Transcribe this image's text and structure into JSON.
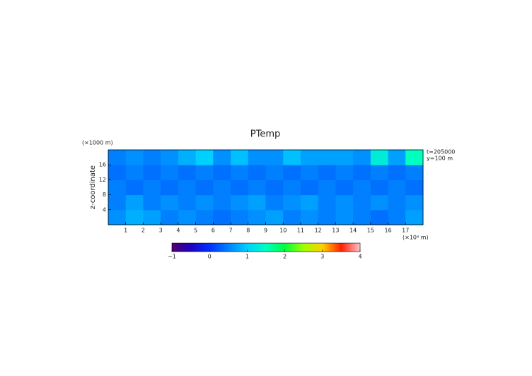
{
  "chart_data": {
    "type": "heatmap",
    "title": "PTemp",
    "ylabel": "z-coordinate",
    "ylabel_unit": "(×1000 m)",
    "xlabel_unit": "(×10⁴ m)",
    "annotations": [
      "t=205000",
      "y=100 m"
    ],
    "xlim": [
      0,
      18
    ],
    "ylim": [
      0,
      20
    ],
    "xticks": [
      1,
      2,
      3,
      4,
      5,
      6,
      7,
      8,
      9,
      10,
      11,
      12,
      13,
      14,
      15,
      16,
      17
    ],
    "yticks": [
      4,
      8,
      12,
      16
    ],
    "clim": [
      -1,
      4
    ],
    "cticks": [
      {
        "value": -1,
        "label": "−1"
      },
      0,
      1,
      2,
      3,
      4
    ],
    "colormap": [
      "#500070",
      "#2000c0",
      "#0030ff",
      "#0080ff",
      "#00d0ff",
      "#00ffc0",
      "#00ff40",
      "#a0ff00",
      "#ffd000",
      "#ff2000",
      "#ffc0d0"
    ],
    "z": [
      [
        0.6,
        0.8,
        0.7,
        0.5,
        0.6,
        0.5,
        0.4,
        0.5,
        0.6,
        0.7,
        0.5,
        0.6,
        0.5,
        0.6,
        0.5,
        0.4,
        0.5,
        0.7
      ],
      [
        0.5,
        0.7,
        0.5,
        0.6,
        0.5,
        0.6,
        0.5,
        0.6,
        0.7,
        0.5,
        0.6,
        0.7,
        0.5,
        0.6,
        0.5,
        0.6,
        0.5,
        0.6
      ],
      [
        0.5,
        0.4,
        0.5,
        0.4,
        0.5,
        0.4,
        0.5,
        0.4,
        0.5,
        0.4,
        0.5,
        0.4,
        0.5,
        0.4,
        0.5,
        0.4,
        0.5,
        0.4
      ],
      [
        0.4,
        0.5,
        0.4,
        0.5,
        0.4,
        0.5,
        0.4,
        0.5,
        0.4,
        0.5,
        0.4,
        0.5,
        0.4,
        0.5,
        0.4,
        0.5,
        0.4,
        0.5
      ],
      [
        0.5,
        0.6,
        0.5,
        0.6,
        0.8,
        1.0,
        0.6,
        0.9,
        0.6,
        0.6,
        0.9,
        0.7,
        0.7,
        0.7,
        0.6,
        1.3,
        0.7,
        1.5
      ]
    ]
  }
}
